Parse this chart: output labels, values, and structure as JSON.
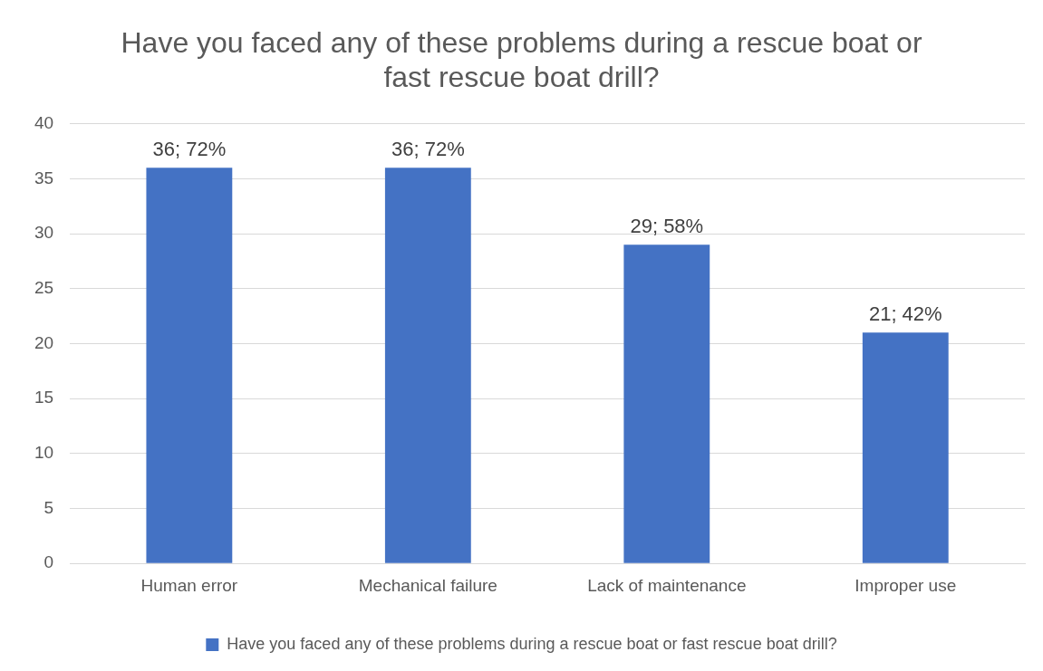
{
  "chart_data": {
    "type": "bar",
    "title": "Have you faced any of these problems during a rescue boat or fast rescue boat drill?",
    "categories": [
      "Human error",
      "Mechanical failure",
      "Lack of maintenance",
      "Improper use"
    ],
    "series": [
      {
        "name": "Have you faced any of these problems during a rescue boat or fast rescue boat drill?",
        "color": "#4472c4",
        "values": [
          36,
          36,
          29,
          21
        ],
        "value_labels": [
          "36; 72%",
          "36; 72%",
          "29; 58%",
          "21; 42%"
        ]
      }
    ],
    "ylim": [
      0,
      40
    ],
    "yticks": [
      0,
      5,
      10,
      15,
      20,
      25,
      30,
      35,
      40
    ],
    "grid": "y",
    "legend": "bottom"
  }
}
